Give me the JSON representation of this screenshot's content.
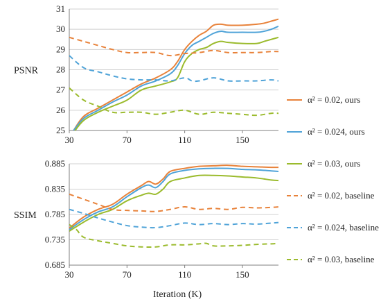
{
  "colors": {
    "orange": "#E8823A",
    "blue": "#4FA3D8",
    "green": "#9BBB2D",
    "axis": "#7f7f7f",
    "grid": "#d0d0d0"
  },
  "chart_data": [
    {
      "type": "line",
      "ylabel": "PSNR",
      "xlabel": "",
      "xlim": [
        30,
        175
      ],
      "ylim": [
        25,
        31
      ],
      "xticks": [
        "30",
        "70",
        "110",
        "150"
      ],
      "yticks": [
        "25",
        "26",
        "27",
        "28",
        "29",
        "30",
        "31"
      ],
      "grid": "horizontal",
      "series": [
        {
          "name": "α² = 0.02, ours",
          "color": "orange",
          "style": "solid",
          "x": [
            33,
            40,
            50,
            60,
            70,
            80,
            90,
            100,
            105,
            110,
            115,
            120,
            125,
            130,
            135,
            140,
            150,
            160,
            165,
            170,
            175
          ],
          "y": [
            25.0,
            25.7,
            26.1,
            26.5,
            26.9,
            27.3,
            27.6,
            28.0,
            28.4,
            29.0,
            29.4,
            29.7,
            29.9,
            30.2,
            30.25,
            30.2,
            30.2,
            30.25,
            30.3,
            30.4,
            30.5
          ]
        },
        {
          "name": "α² = 0.024, ours",
          "color": "blue",
          "style": "solid",
          "x": [
            33,
            40,
            50,
            60,
            70,
            80,
            90,
            100,
            105,
            110,
            115,
            120,
            125,
            130,
            135,
            140,
            150,
            160,
            165,
            170,
            175
          ],
          "y": [
            25.0,
            25.6,
            26.0,
            26.4,
            26.75,
            27.2,
            27.45,
            27.8,
            28.2,
            28.8,
            29.2,
            29.4,
            29.6,
            29.8,
            29.9,
            29.85,
            29.85,
            29.85,
            29.9,
            30.0,
            30.15
          ]
        },
        {
          "name": "α² = 0.03, ours",
          "color": "green",
          "style": "solid",
          "x": [
            33,
            40,
            50,
            60,
            70,
            80,
            90,
            100,
            105,
            110,
            115,
            120,
            125,
            130,
            135,
            140,
            150,
            160,
            165,
            170,
            175
          ],
          "y": [
            24.9,
            25.5,
            25.9,
            26.2,
            26.5,
            27.0,
            27.2,
            27.4,
            27.6,
            28.4,
            28.8,
            29.0,
            29.1,
            29.3,
            29.4,
            29.35,
            29.3,
            29.3,
            29.4,
            29.5,
            29.6
          ]
        },
        {
          "name": "α² = 0.02, baseline",
          "color": "orange",
          "style": "dashed",
          "x": [
            30,
            40,
            50,
            60,
            70,
            80,
            90,
            100,
            110,
            120,
            130,
            140,
            150,
            160,
            170,
            175
          ],
          "y": [
            29.6,
            29.4,
            29.2,
            29.0,
            28.85,
            28.85,
            28.85,
            28.7,
            28.8,
            28.85,
            28.95,
            28.85,
            28.85,
            28.85,
            28.9,
            28.9
          ]
        },
        {
          "name": "α² = 0.024, baseline",
          "color": "blue",
          "style": "dashed",
          "x": [
            30,
            40,
            50,
            60,
            70,
            80,
            90,
            100,
            110,
            115,
            120,
            130,
            140,
            150,
            160,
            170,
            175
          ],
          "y": [
            28.7,
            28.1,
            27.9,
            27.7,
            27.55,
            27.5,
            27.5,
            27.45,
            27.6,
            27.45,
            27.45,
            27.6,
            27.45,
            27.45,
            27.45,
            27.5,
            27.45
          ]
        },
        {
          "name": "α² = 0.03, baseline",
          "color": "green",
          "style": "dashed",
          "x": [
            30,
            40,
            50,
            60,
            70,
            80,
            90,
            100,
            110,
            120,
            130,
            140,
            150,
            160,
            170,
            175
          ],
          "y": [
            27.1,
            26.5,
            26.2,
            25.9,
            25.9,
            25.9,
            25.8,
            25.9,
            26.0,
            25.8,
            25.9,
            25.85,
            25.8,
            25.75,
            25.85,
            25.85
          ]
        }
      ]
    },
    {
      "type": "line",
      "ylabel": "SSIM",
      "xlabel": "Iteration (K)",
      "xlim": [
        30,
        175
      ],
      "ylim": [
        0.685,
        0.885
      ],
      "xticks": [
        "30",
        "70",
        "110",
        "150"
      ],
      "yticks": [
        "0.685",
        "0.735",
        "0.785",
        "0.835",
        "0.885"
      ],
      "grid": "horizontal",
      "series": [
        {
          "name": "α² = 0.02, ours",
          "color": "orange",
          "style": "solid",
          "x": [
            30,
            40,
            50,
            60,
            70,
            80,
            85,
            90,
            95,
            100,
            110,
            120,
            130,
            140,
            150,
            160,
            170,
            175
          ],
          "y": [
            0.758,
            0.78,
            0.795,
            0.805,
            0.825,
            0.842,
            0.85,
            0.845,
            0.855,
            0.87,
            0.876,
            0.88,
            0.881,
            0.882,
            0.88,
            0.879,
            0.878,
            0.878
          ]
        },
        {
          "name": "α² = 0.024, ours",
          "color": "blue",
          "style": "solid",
          "x": [
            30,
            40,
            50,
            60,
            70,
            80,
            85,
            90,
            95,
            100,
            110,
            120,
            130,
            140,
            150,
            160,
            170,
            175
          ],
          "y": [
            0.755,
            0.775,
            0.79,
            0.8,
            0.82,
            0.838,
            0.843,
            0.838,
            0.85,
            0.865,
            0.872,
            0.875,
            0.876,
            0.876,
            0.874,
            0.873,
            0.871,
            0.87
          ]
        },
        {
          "name": "α² = 0.03, ours",
          "color": "green",
          "style": "solid",
          "x": [
            30,
            40,
            50,
            60,
            70,
            80,
            85,
            90,
            95,
            100,
            110,
            120,
            130,
            140,
            150,
            160,
            170,
            175
          ],
          "y": [
            0.752,
            0.77,
            0.785,
            0.795,
            0.812,
            0.823,
            0.827,
            0.825,
            0.835,
            0.85,
            0.857,
            0.862,
            0.862,
            0.861,
            0.859,
            0.857,
            0.853,
            0.852
          ]
        },
        {
          "name": "α² = 0.02, baseline",
          "color": "orange",
          "style": "dashed",
          "x": [
            30,
            40,
            50,
            60,
            70,
            80,
            90,
            100,
            110,
            120,
            130,
            140,
            150,
            160,
            170,
            175
          ],
          "y": [
            0.825,
            0.815,
            0.805,
            0.795,
            0.793,
            0.792,
            0.791,
            0.795,
            0.8,
            0.795,
            0.797,
            0.795,
            0.799,
            0.798,
            0.799,
            0.8
          ]
        },
        {
          "name": "α² = 0.024, baseline",
          "color": "blue",
          "style": "dashed",
          "x": [
            30,
            40,
            50,
            60,
            70,
            80,
            90,
            100,
            110,
            120,
            130,
            140,
            150,
            160,
            170,
            175
          ],
          "y": [
            0.795,
            0.787,
            0.778,
            0.77,
            0.763,
            0.76,
            0.759,
            0.763,
            0.768,
            0.765,
            0.767,
            0.765,
            0.767,
            0.766,
            0.768,
            0.769
          ]
        },
        {
          "name": "α² = 0.03, baseline",
          "color": "green",
          "style": "dashed",
          "x": [
            30,
            35,
            40,
            50,
            60,
            70,
            80,
            90,
            100,
            110,
            120,
            125,
            130,
            140,
            150,
            160,
            170,
            175
          ],
          "y": [
            0.765,
            0.755,
            0.74,
            0.733,
            0.728,
            0.723,
            0.721,
            0.721,
            0.725,
            0.725,
            0.727,
            0.728,
            0.723,
            0.723,
            0.724,
            0.726,
            0.727,
            0.728
          ]
        }
      ]
    }
  ]
}
